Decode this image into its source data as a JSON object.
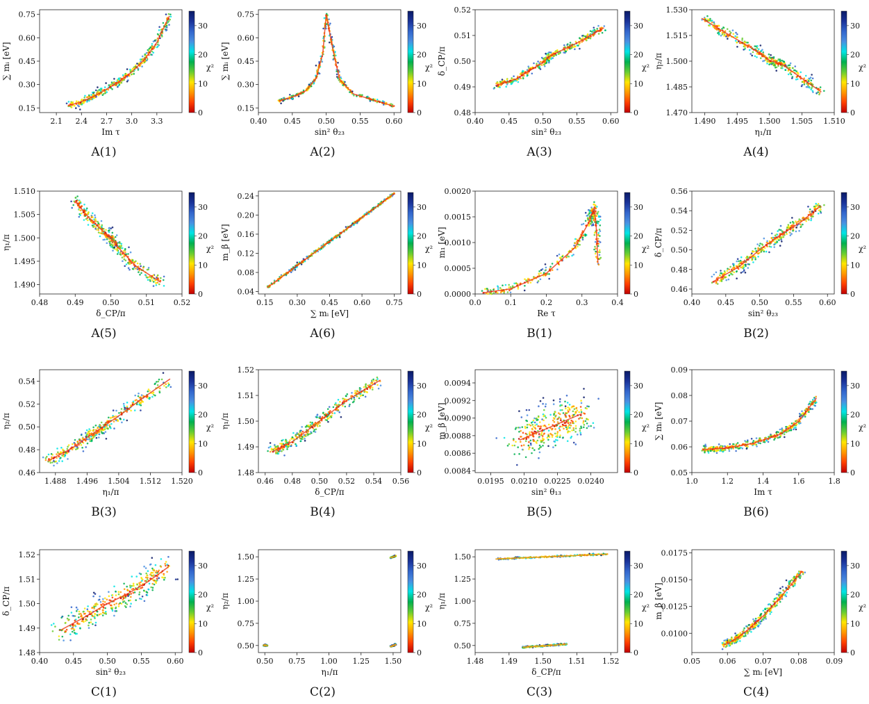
{
  "figure": {
    "colorbar": {
      "label": "χ²",
      "ticks": [
        0,
        10,
        20,
        30
      ],
      "max": 35,
      "colors": [
        "#c00000",
        "#ff4000",
        "#ff9900",
        "#ffe600",
        "#66cc33",
        "#00b050",
        "#00e5e5",
        "#4a90e2",
        "#3366cc",
        "#1a3399",
        "#0a1a66"
      ]
    }
  },
  "chart_data": [
    {
      "id": "A1",
      "caption": "A(1)",
      "type": "scatter",
      "xlabel": "Im τ",
      "ylabel": "∑ mᵢ [eV]",
      "xlim": [
        1.9,
        3.6
      ],
      "ylim": [
        0.12,
        0.78
      ],
      "xticks": [
        "2.1",
        "2.4",
        "2.7",
        "3.0",
        "3.3"
      ],
      "yticks": [
        "0.15",
        "0.30",
        "0.45",
        "0.60",
        "0.75"
      ],
      "x": [
        2.25,
        2.4,
        2.55,
        2.7,
        2.85,
        3.0,
        3.15,
        3.3,
        3.45
      ],
      "y": [
        0.165,
        0.19,
        0.225,
        0.27,
        0.32,
        0.38,
        0.46,
        0.57,
        0.74
      ],
      "spread": 0.012
    },
    {
      "id": "A2",
      "caption": "A(2)",
      "type": "scatter",
      "xlabel": "sin² θ₂₃",
      "ylabel": "∑ mᵢ [eV]",
      "xlim": [
        0.4,
        0.61
      ],
      "ylim": [
        0.12,
        0.78
      ],
      "xticks": [
        "0.40",
        "0.45",
        "0.50",
        "0.55",
        "0.60"
      ],
      "yticks": [
        "0.15",
        "0.30",
        "0.45",
        "0.60",
        "0.75"
      ],
      "x": [
        0.43,
        0.45,
        0.47,
        0.485,
        0.495,
        0.5,
        0.51,
        0.52,
        0.54,
        0.57,
        0.6
      ],
      "y": [
        0.195,
        0.22,
        0.26,
        0.34,
        0.5,
        0.75,
        0.52,
        0.33,
        0.24,
        0.2,
        0.16
      ],
      "spread": 0.006
    },
    {
      "id": "A3",
      "caption": "A(3)",
      "type": "scatter",
      "xlabel": "sin² θ₂₃",
      "ylabel": "δ_CP/π",
      "xlim": [
        0.4,
        0.61
      ],
      "ylim": [
        0.48,
        0.52
      ],
      "xticks": [
        "0.40",
        "0.45",
        "0.50",
        "0.55",
        "0.60"
      ],
      "yticks": [
        "0.48",
        "0.49",
        "0.50",
        "0.51",
        "0.52"
      ],
      "x": [
        0.43,
        0.46,
        0.5,
        0.51,
        0.55,
        0.59
      ],
      "y": [
        0.4905,
        0.493,
        0.4995,
        0.502,
        0.507,
        0.513
      ],
      "spread": 0.0008
    },
    {
      "id": "A4",
      "caption": "A(4)",
      "type": "scatter",
      "xlabel": "η₁/π",
      "ylabel": "η₂/π",
      "xlim": [
        1.488,
        1.51
      ],
      "ylim": [
        1.47,
        1.53
      ],
      "xticks": [
        "1.490",
        "1.495",
        "1.500",
        "1.505",
        "1.510"
      ],
      "yticks": [
        "1.470",
        "1.485",
        "1.500",
        "1.515",
        "1.530"
      ],
      "x": [
        1.4895,
        1.493,
        1.4975,
        1.5,
        1.502,
        1.505,
        1.508
      ],
      "y": [
        1.525,
        1.517,
        1.507,
        1.5005,
        1.498,
        1.49,
        1.482
      ],
      "spread": 0.0015
    },
    {
      "id": "A5",
      "caption": "A(5)",
      "type": "scatter",
      "xlabel": "δ_CP/π",
      "ylabel": "η₁/π",
      "xlim": [
        0.48,
        0.52
      ],
      "ylim": [
        1.488,
        1.51
      ],
      "xticks": [
        "0.48",
        "0.49",
        "0.50",
        "0.51",
        "0.52"
      ],
      "yticks": [
        "1.490",
        "1.495",
        "1.500",
        "1.505",
        "1.510"
      ],
      "x": [
        0.49,
        0.493,
        0.497,
        0.5,
        0.502,
        0.507,
        0.514
      ],
      "y": [
        1.508,
        1.505,
        1.502,
        1.5,
        1.498,
        1.494,
        1.4905
      ],
      "spread": 0.0007
    },
    {
      "id": "A6",
      "caption": "A(6)",
      "type": "scatter",
      "xlabel": "∑ mᵢ [eV]",
      "ylabel": "m_β [eV]",
      "xlim": [
        0.12,
        0.78
      ],
      "ylim": [
        0.035,
        0.25
      ],
      "xticks": [
        "0.15",
        "0.30",
        "0.45",
        "0.60",
        "0.75"
      ],
      "yticks": [
        "0.04",
        "0.08",
        "0.12",
        "0.16",
        "0.20",
        "0.24"
      ],
      "x": [
        0.16,
        0.75
      ],
      "y": [
        0.048,
        0.245
      ],
      "spread": 0.0015
    },
    {
      "id": "B1",
      "caption": "B(1)",
      "type": "scatter",
      "xlabel": "Re τ",
      "ylabel": "m₁ [eV]",
      "xlim": [
        0.0,
        0.4
      ],
      "ylim": [
        0.0,
        0.002
      ],
      "xticks": [
        "0.0",
        "0.1",
        "0.2",
        "0.3",
        "0.4"
      ],
      "yticks": [
        "0.0000",
        "0.0005",
        "0.0010",
        "0.0015",
        "0.0020"
      ],
      "x": [
        0.02,
        0.1,
        0.2,
        0.28,
        0.32,
        0.335,
        0.34,
        0.345
      ],
      "y": [
        2e-05,
        0.0001,
        0.0004,
        0.0009,
        0.0014,
        0.0017,
        0.0013,
        0.0006
      ],
      "spread": 5e-05
    },
    {
      "id": "B2",
      "caption": "B(2)",
      "type": "scatter",
      "xlabel": "sin² θ₂₃",
      "ylabel": "δ_CP/π",
      "xlim": [
        0.4,
        0.61
      ],
      "ylim": [
        0.455,
        0.56
      ],
      "xticks": [
        "0.40",
        "0.45",
        "0.50",
        "0.55",
        "0.60"
      ],
      "yticks": [
        "0.46",
        "0.48",
        "0.50",
        "0.52",
        "0.54",
        "0.56"
      ],
      "x": [
        0.43,
        0.47,
        0.5,
        0.53,
        0.56,
        0.59
      ],
      "y": [
        0.467,
        0.483,
        0.5,
        0.515,
        0.528,
        0.545
      ],
      "spread": 0.003
    },
    {
      "id": "B3",
      "caption": "B(3)",
      "type": "scatter",
      "xlabel": "η₁/π",
      "ylabel": "η₂/π",
      "xlim": [
        1.484,
        1.52
      ],
      "ylim": [
        0.46,
        0.55
      ],
      "xticks": [
        "1.488",
        "1.496",
        "1.504",
        "1.512",
        "1.520"
      ],
      "yticks": [
        "0.46",
        "0.48",
        "0.50",
        "0.52",
        "0.54"
      ],
      "x": [
        1.486,
        1.492,
        1.497,
        1.5,
        1.505,
        1.51,
        1.517
      ],
      "y": [
        0.47,
        0.481,
        0.493,
        0.5,
        0.512,
        0.525,
        0.542
      ],
      "spread": 0.003
    },
    {
      "id": "B4",
      "caption": "B(4)",
      "type": "scatter",
      "xlabel": "δ_CP/π",
      "ylabel": "η₁/π",
      "xlim": [
        0.455,
        0.56
      ],
      "ylim": [
        1.48,
        1.52
      ],
      "xticks": [
        "0.46",
        "0.48",
        "0.50",
        "0.52",
        "0.54",
        "0.56"
      ],
      "yticks": [
        "1.48",
        "1.49",
        "1.50",
        "1.51",
        "1.52"
      ],
      "x": [
        0.465,
        0.48,
        0.5,
        0.52,
        0.545
      ],
      "y": [
        1.488,
        1.492,
        1.5,
        1.508,
        1.516
      ],
      "spread": 0.0012
    },
    {
      "id": "B5",
      "caption": "B(5)",
      "type": "scatter",
      "xlabel": "sin² θ₁₃",
      "ylabel": "m_β [eV]",
      "xlim": [
        0.0188,
        0.0252
      ],
      "ylim": [
        0.00838,
        0.00955
      ],
      "xticks": [
        "0.0195",
        "0.0210",
        "0.0225",
        "0.0240"
      ],
      "yticks": [
        "0.0084",
        "0.0086",
        "0.0088",
        "0.0090",
        "0.0092",
        "0.0094"
      ],
      "x": [
        0.0208,
        0.0222,
        0.0236
      ],
      "y": [
        0.00875,
        0.0089,
        0.00905
      ],
      "spread": 0.00012
    },
    {
      "id": "B6",
      "caption": "B(6)",
      "type": "scatter",
      "xlabel": "Im τ",
      "ylabel": "∑ mᵢ [eV]",
      "xlim": [
        1.0,
        1.8
      ],
      "ylim": [
        0.05,
        0.09
      ],
      "xticks": [
        "1.0",
        "1.2",
        "1.4",
        "1.6",
        "1.8"
      ],
      "yticks": [
        "0.05",
        "0.06",
        "0.07",
        "0.08",
        "0.09"
      ],
      "x": [
        1.06,
        1.2,
        1.35,
        1.5,
        1.6,
        1.7
      ],
      "y": [
        0.059,
        0.0595,
        0.0615,
        0.065,
        0.07,
        0.079
      ],
      "spread": 0.0007
    },
    {
      "id": "C1",
      "caption": "C(1)",
      "type": "scatter",
      "xlabel": "sin² θ₂₃",
      "ylabel": "δ_CP/π",
      "xlim": [
        0.4,
        0.61
      ],
      "ylim": [
        1.48,
        1.522
      ],
      "xticks": [
        "0.40",
        "0.45",
        "0.50",
        "0.55",
        "0.60"
      ],
      "yticks": [
        "1.48",
        "1.49",
        "1.50",
        "1.51",
        "1.52"
      ],
      "x": [
        0.43,
        0.47,
        0.5,
        0.53,
        0.56,
        0.59
      ],
      "y": [
        1.489,
        1.495,
        1.5,
        1.504,
        1.509,
        1.515
      ],
      "spread": 0.0025
    },
    {
      "id": "C2",
      "caption": "C(2)",
      "type": "scatter",
      "xlabel": "η₁/π",
      "ylabel": "η₂/π",
      "xlim": [
        0.45,
        1.56
      ],
      "ylim": [
        0.42,
        1.58
      ],
      "xticks": [
        "0.50",
        "0.75",
        "1.00",
        "1.25",
        "1.50"
      ],
      "yticks": [
        "0.50",
        "0.75",
        "1.00",
        "1.25",
        "1.50"
      ],
      "x": [
        0.49,
        0.52,
        1.48,
        1.52,
        1.48,
        1.52
      ],
      "y": [
        0.5,
        0.5,
        1.49,
        1.51,
        0.49,
        0.51
      ],
      "spread": 0.003
    },
    {
      "id": "C3",
      "caption": "C(3)",
      "type": "scatter",
      "xlabel": "δ_CP/π",
      "ylabel": "η₁/π",
      "xlim": [
        1.48,
        1.522
      ],
      "ylim": [
        0.42,
        1.58
      ],
      "xticks": [
        "1.48",
        "1.49",
        "1.50",
        "1.51",
        "1.52"
      ],
      "yticks": [
        "0.50",
        "0.75",
        "1.00",
        "1.25",
        "1.50"
      ],
      "x": [
        1.486,
        1.519,
        1.494,
        1.507
      ],
      "y": [
        1.475,
        1.53,
        0.48,
        0.515
      ],
      "spread": 0.004
    },
    {
      "id": "C4",
      "caption": "C(4)",
      "type": "scatter",
      "xlabel": "∑ mᵢ [eV]",
      "ylabel": "m_β [eV]",
      "xlim": [
        0.05,
        0.09
      ],
      "ylim": [
        0.0082,
        0.0178
      ],
      "xticks": [
        "0.05",
        "0.06",
        "0.07",
        "0.08",
        "0.09"
      ],
      "yticks": [
        "0.0100",
        "0.0125",
        "0.0150",
        "0.0175"
      ],
      "x": [
        0.059,
        0.062,
        0.066,
        0.07,
        0.075,
        0.081
      ],
      "y": [
        0.0089,
        0.0094,
        0.0104,
        0.0116,
        0.0134,
        0.0158
      ],
      "spread": 0.0002
    }
  ]
}
